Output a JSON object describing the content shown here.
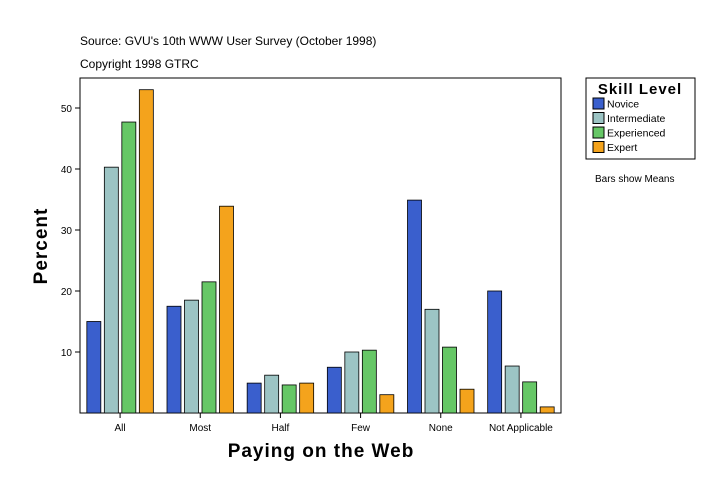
{
  "chart_data": {
    "type": "bar",
    "source": "Source: GVU's 10th WWW User Survey (October 1998)",
    "copyright": "Copyright 1998 GTRC",
    "xlabel": "Paying on the Web",
    "ylabel": "Percent",
    "ylim": [
      0,
      55
    ],
    "yticks": [
      10,
      20,
      30,
      40,
      50
    ],
    "categories": [
      "All",
      "Most",
      "Half",
      "Few",
      "None",
      "Not Applicable"
    ],
    "legend_title": "Skill Level",
    "legend_position": "right",
    "note": "Bars show Means",
    "grid": false,
    "series": [
      {
        "name": "Novice",
        "color": "#3a5fcd",
        "values": [
          15.0,
          17.5,
          4.9,
          7.5,
          34.9,
          20.0
        ]
      },
      {
        "name": "Intermediate",
        "color": "#9cc4c4",
        "values": [
          40.3,
          18.5,
          6.2,
          10.0,
          17.0,
          7.7
        ]
      },
      {
        "name": "Experienced",
        "color": "#66c766",
        "values": [
          47.7,
          21.5,
          4.6,
          10.3,
          10.8,
          5.1
        ]
      },
      {
        "name": "Expert",
        "color": "#f4a31c",
        "values": [
          53.0,
          33.9,
          4.9,
          3.0,
          3.9,
          1.0
        ]
      }
    ]
  }
}
